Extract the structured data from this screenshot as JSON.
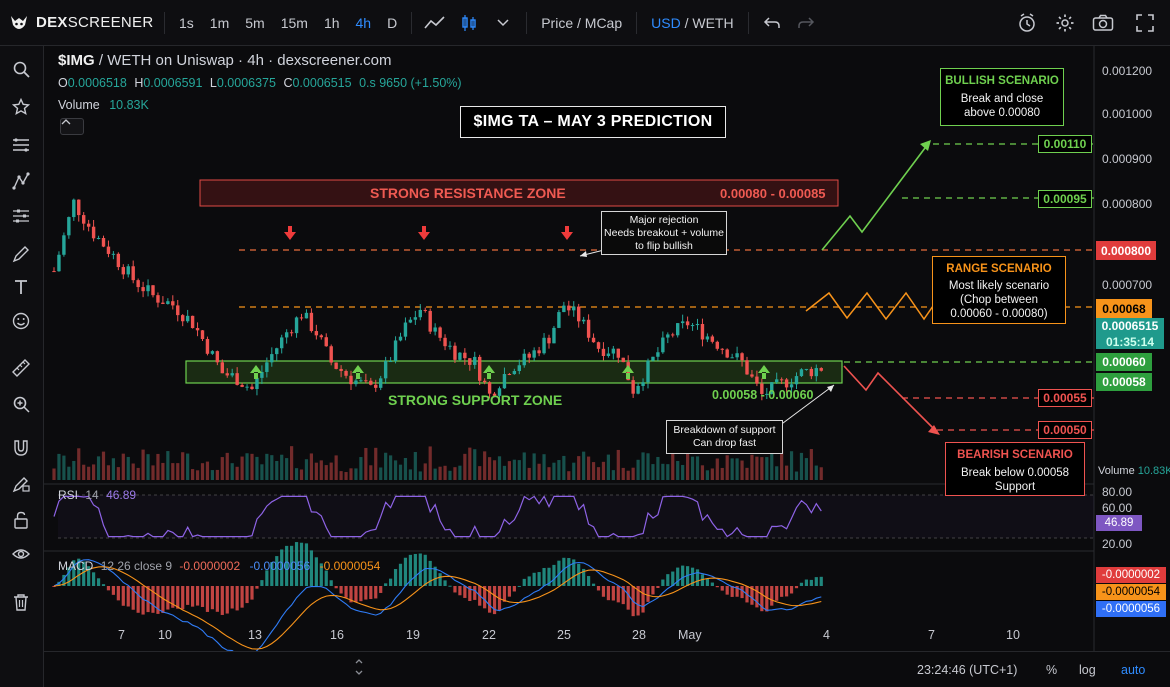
{
  "topbar": {
    "logo_bold": "DEX",
    "logo_rest": "SCREENER",
    "timeframes": [
      {
        "label": "1s",
        "active": false
      },
      {
        "label": "1m",
        "active": false
      },
      {
        "label": "5m",
        "active": false
      },
      {
        "label": "15m",
        "active": false
      },
      {
        "label": "1h",
        "active": false
      },
      {
        "label": "4h",
        "active": true
      },
      {
        "label": "D",
        "active": false
      }
    ],
    "price_mcap": "Price / MCap",
    "currency_active": "USD",
    "currency_sep": " / ",
    "currency_other": "WETH"
  },
  "sidebar": {
    "icons": [
      "search-icon",
      "star-icon",
      "lines-icon",
      "crosshair-icon",
      "sliders-icon",
      "pencil-icon",
      "text-icon",
      "smiley-icon",
      "ruler-icon",
      "zoom-icon",
      "magnet-icon",
      "lock-pencil-icon",
      "lock-icon",
      "eye-icon",
      "trash-icon"
    ]
  },
  "header": {
    "symbol": "$IMG",
    "pair_rest": " / WETH on Uniswap · 4h · dexscreener.com",
    "ohlc": {
      "o": "0.0006518",
      "h": "0.0006591",
      "l": "0.0006375",
      "c": "0.0006515",
      "change": "0.s 9650 (+1.50%)"
    },
    "volume_label": "Volume",
    "volume_value": "10.83K"
  },
  "title": "$IMG TA – MAY 3 PREDICTION",
  "annotations": {
    "resistance_zone": "STRONG RESISTANCE ZONE",
    "resistance_range": "0.00080 - 0.00085",
    "support_zone": "STRONG SUPPORT ZONE",
    "support_range": "0.00058 - 0.00060",
    "rejection_lines": [
      "Major rejection",
      "Needs breakout + volume",
      "to flip bullish"
    ],
    "breakdown_lines": [
      "Breakdown of support",
      "Can drop fast"
    ],
    "bullish_title": "BULLISH SCENARIO",
    "bullish_lines": [
      "Break and close",
      "above 0.00080"
    ],
    "range_title": "RANGE SCENARIO",
    "range_lines": [
      "Most likely scenario",
      "(Chop between",
      "0.00060 - 0.00080)"
    ],
    "bearish_title": "BEARISH SCENARIO",
    "bearish_lines": [
      "Break below 0.00058",
      "Support"
    ]
  },
  "price_axis": {
    "ticks": [
      "0.001200",
      "0.001000",
      "0.000900",
      "0.000800",
      "0.000700",
      "0.000600"
    ],
    "tags": [
      {
        "text": "0.00110",
        "style": "outline-green"
      },
      {
        "text": "0.00095",
        "style": "outline-green"
      },
      {
        "text": "0.000800",
        "style": "fill-red"
      },
      {
        "text": "0.00068",
        "style": "fill-orange"
      },
      {
        "text": "0.0006515",
        "style": "fill-teal"
      },
      {
        "text": "01:35:14",
        "style": "fill-teal-sub"
      },
      {
        "text": "0.00060",
        "style": "fill-green"
      },
      {
        "text": "0.00058",
        "style": "fill-green"
      },
      {
        "text": "0.00055",
        "style": "outline-red"
      },
      {
        "text": "0.00050",
        "style": "outline-red"
      }
    ],
    "volume_label": "Volume",
    "volume_value": "10.83K"
  },
  "rsi": {
    "label": "RSI",
    "period": "14",
    "value": "46.89",
    "ticks": [
      "80.00",
      "60.00",
      "20.00"
    ],
    "tag": "46.89"
  },
  "macd": {
    "label": "MACD",
    "params": "12 26 close 9",
    "v1": "-0.0000002",
    "v2": "-0.0000056",
    "v3": "-0.0000054",
    "tags": [
      "-0.0000002",
      "-0.0000054",
      "-0.0000056"
    ]
  },
  "x_axis": {
    "labels": [
      "7",
      "10",
      "13",
      "16",
      "19",
      "22",
      "25",
      "28",
      "May",
      "4",
      "7",
      "10"
    ]
  },
  "bottombar": {
    "time": "23:24:46 (UTC+1)",
    "percent": "%",
    "log": "log",
    "auto": "auto"
  },
  "colors": {
    "up": "#26a69a",
    "down": "#ef5350",
    "resistance": "#f26b63",
    "support": "#7bd35b",
    "orange": "#f7931a",
    "rsi": "#7e57c2",
    "accent": "#2f8cff"
  },
  "chart_data": {
    "type": "candlestick",
    "title": "$IMG TA – MAY 3 PREDICTION",
    "pair": "$IMG / WETH",
    "timeframe": "4h",
    "price_scale": "log",
    "price_range": [
      0.00055,
      0.00125
    ],
    "key_levels": {
      "resistance_zone": [
        0.0008,
        0.00085
      ],
      "support_zone": [
        0.00058,
        0.0006
      ],
      "targets_up": [
        0.00095,
        0.0011
      ],
      "range_mid": 0.00068,
      "targets_down": [
        0.00055,
        0.0005
      ],
      "resistance_line": 0.0008
    },
    "price_path": [
      {
        "i": 0,
        "p": 0.00086
      },
      {
        "i": 4,
        "p": 0.00105
      },
      {
        "i": 8,
        "p": 0.00096
      },
      {
        "i": 12,
        "p": 0.0009
      },
      {
        "i": 16,
        "p": 0.00084
      },
      {
        "i": 20,
        "p": 0.0008
      },
      {
        "i": 24,
        "p": 0.00078
      },
      {
        "i": 28,
        "p": 0.00074
      },
      {
        "i": 31,
        "p": 0.00069
      },
      {
        "i": 34,
        "p": 0.00064
      },
      {
        "i": 37,
        "p": 0.00063
      },
      {
        "i": 40,
        "p": 0.00061
      },
      {
        "i": 43,
        "p": 0.00066
      },
      {
        "i": 47,
        "p": 0.00072
      },
      {
        "i": 50,
        "p": 0.00076
      },
      {
        "i": 53,
        "p": 0.00072
      },
      {
        "i": 56,
        "p": 0.00066
      },
      {
        "i": 60,
        "p": 0.00063
      },
      {
        "i": 64,
        "p": 0.00061
      },
      {
        "i": 67,
        "p": 0.00065
      },
      {
        "i": 71,
        "p": 0.00073
      },
      {
        "i": 74,
        "p": 0.00077
      },
      {
        "i": 77,
        "p": 0.00072
      },
      {
        "i": 81,
        "p": 0.00068
      },
      {
        "i": 85,
        "p": 0.00066
      },
      {
        "i": 88,
        "p": 0.0006
      },
      {
        "i": 92,
        "p": 0.00065
      },
      {
        "i": 96,
        "p": 0.00067
      },
      {
        "i": 100,
        "p": 0.00071
      },
      {
        "i": 103,
        "p": 0.00078
      },
      {
        "i": 106,
        "p": 0.00075
      },
      {
        "i": 110,
        "p": 0.00069
      },
      {
        "i": 114,
        "p": 0.00068
      },
      {
        "i": 117,
        "p": 0.00061
      },
      {
        "i": 120,
        "p": 0.00065
      },
      {
        "i": 124,
        "p": 0.00071
      },
      {
        "i": 128,
        "p": 0.00074
      },
      {
        "i": 131,
        "p": 0.00072
      },
      {
        "i": 135,
        "p": 0.00069
      },
      {
        "i": 139,
        "p": 0.00066
      },
      {
        "i": 143,
        "p": 0.0006
      },
      {
        "i": 147,
        "p": 0.00062
      },
      {
        "i": 151,
        "p": 0.00064
      },
      {
        "i": 155,
        "p": 0.00065
      }
    ],
    "candle_count": 156,
    "rsi_range": [
      20,
      80
    ],
    "rsi_last": 46.89,
    "macd_last": {
      "macd": -2e-07,
      "signal": -5.6e-06,
      "hist": -5.4e-06
    }
  }
}
